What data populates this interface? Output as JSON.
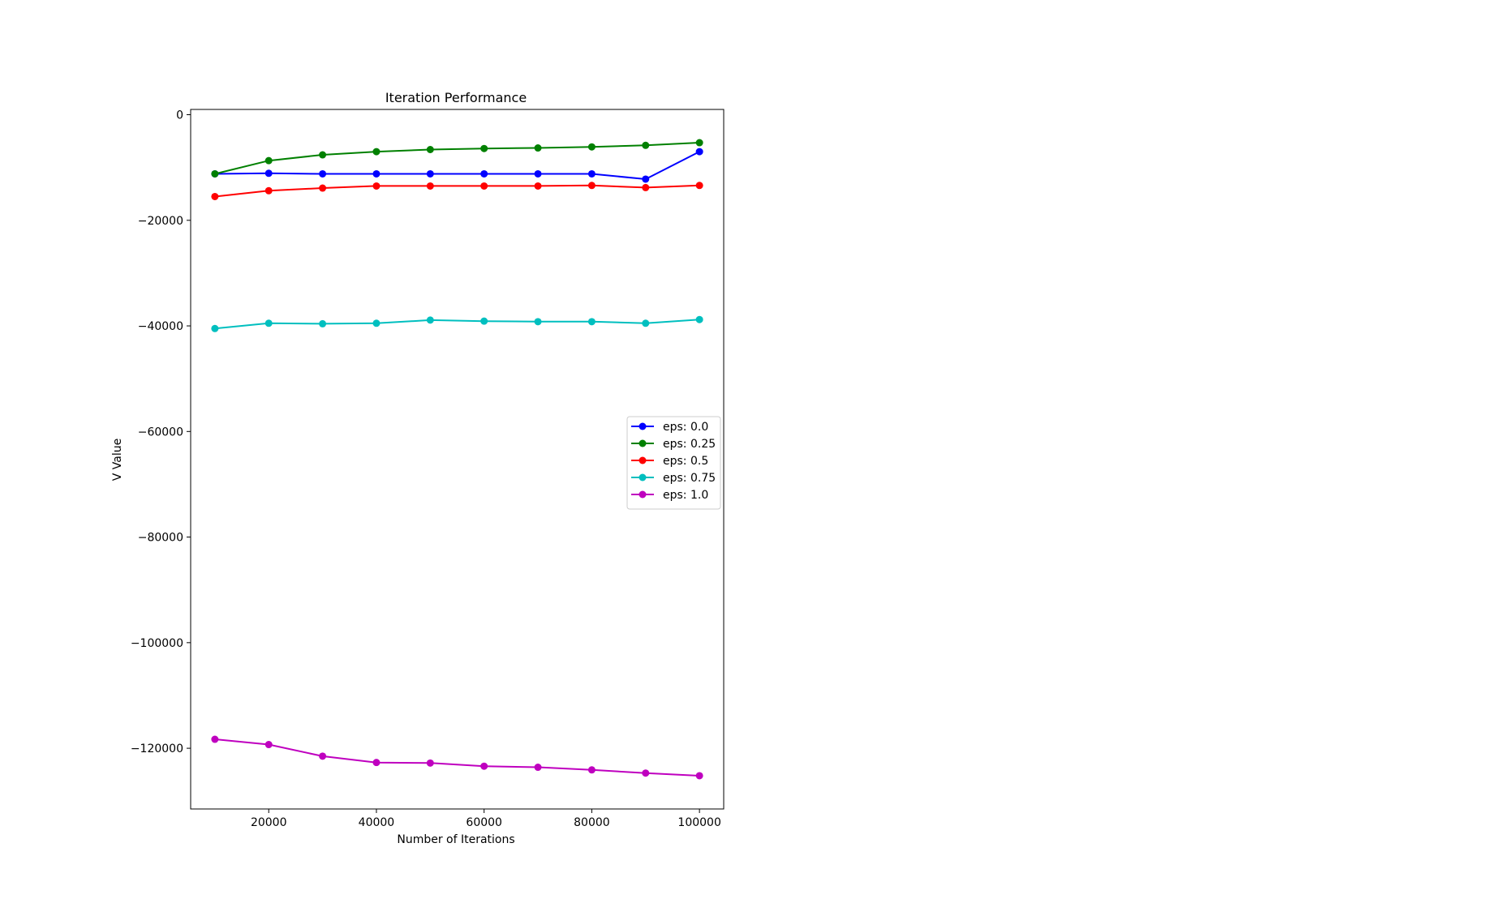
{
  "chart_data": {
    "type": "line",
    "title": "Iteration Performance",
    "xlabel": "Number of Iterations",
    "ylabel": "V Value",
    "x": [
      10000,
      20000,
      30000,
      40000,
      50000,
      60000,
      70000,
      80000,
      90000,
      100000
    ],
    "xlim": [
      5500,
      104500
    ],
    "ylim": [
      -131500,
      1000
    ],
    "xticks": [
      20000,
      40000,
      60000,
      80000,
      100000
    ],
    "xtick_labels": [
      "20000",
      "40000",
      "60000",
      "80000",
      "100000"
    ],
    "yticks": [
      0,
      -20000,
      -40000,
      -60000,
      -80000,
      -100000,
      -120000
    ],
    "ytick_labels": [
      "0",
      "−20000",
      "−40000",
      "−60000",
      "−80000",
      "−100000",
      "−120000"
    ],
    "grid": false,
    "legend_position": "center-right",
    "series": [
      {
        "name": "eps: 0.0",
        "color": "#0000ff",
        "values": [
          -11200,
          -11100,
          -11200,
          -11200,
          -11200,
          -11200,
          -11200,
          -11200,
          -12200,
          -7000
        ]
      },
      {
        "name": "eps: 0.25",
        "color": "#008000",
        "values": [
          -11200,
          -8700,
          -7600,
          -7000,
          -6600,
          -6400,
          -6300,
          -6100,
          -5800,
          -5300
        ]
      },
      {
        "name": "eps: 0.5",
        "color": "#ff0000",
        "values": [
          -15500,
          -14400,
          -13900,
          -13500,
          -13500,
          -13500,
          -13500,
          -13400,
          -13800,
          -13400
        ]
      },
      {
        "name": "eps: 0.75",
        "color": "#00bfbf",
        "values": [
          -40500,
          -39500,
          -39600,
          -39500,
          -38900,
          -39100,
          -39200,
          -39200,
          -39500,
          -38800
        ]
      },
      {
        "name": "eps: 1.0",
        "color": "#bf00bf",
        "values": [
          -118300,
          -119300,
          -121500,
          -122700,
          -122800,
          -123400,
          -123600,
          -124100,
          -124700,
          -125200
        ]
      }
    ]
  }
}
